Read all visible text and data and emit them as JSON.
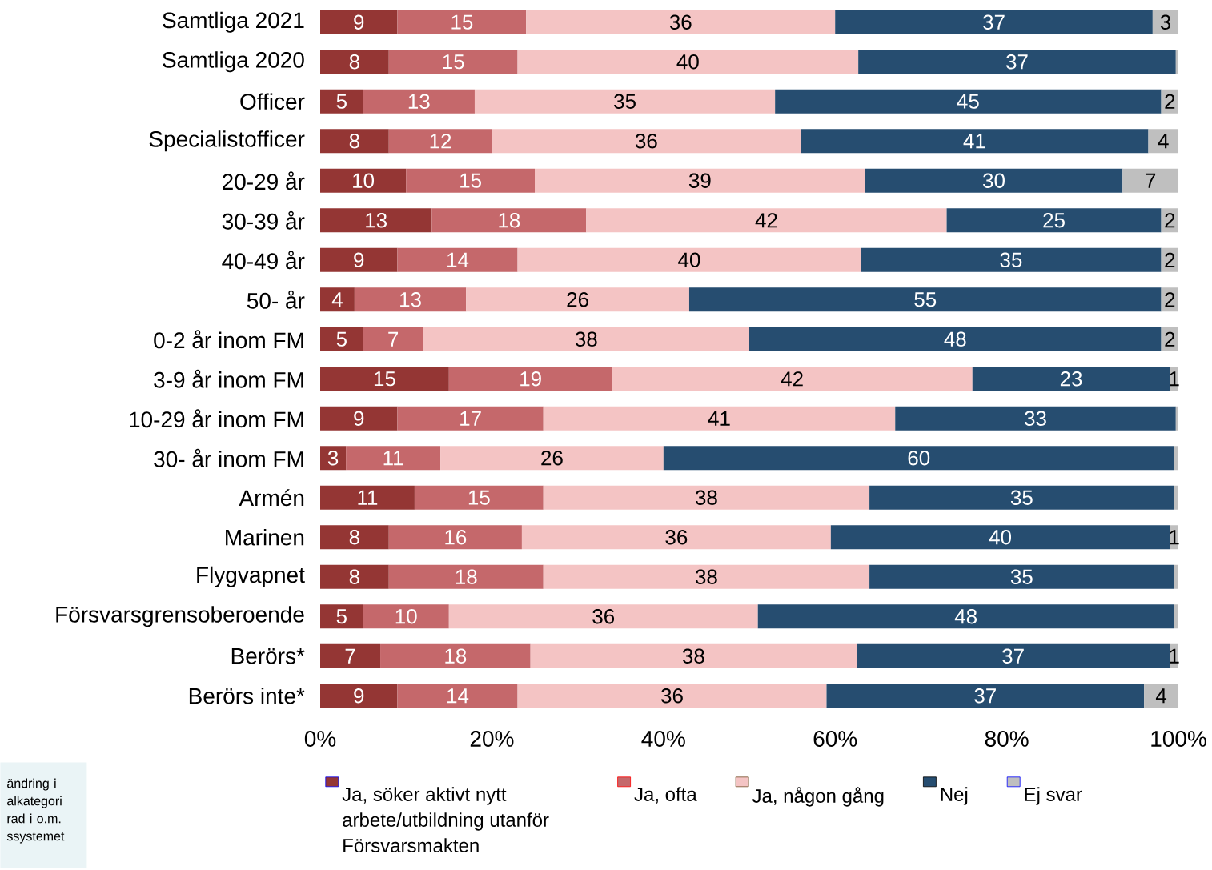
{
  "chart_data": {
    "type": "bar",
    "orientation": "horizontal",
    "stacked": true,
    "legend": "bottom",
    "grid": false,
    "categories": [
      "Samtliga 2021",
      "Samtliga 2020",
      "Officer",
      "Specialistofficer",
      "20-29 år",
      "30-39 år",
      "40-49 år",
      "50- år",
      "0-2 år inom FM",
      "3-9 år inom FM",
      "10-29 år inom FM",
      "30- år inom FM",
      "Armén",
      "Marinen",
      "Flygvapnet",
      "Försvarsgrensoberoende",
      "Berörs*",
      "Berörs inte*"
    ],
    "xlim": [
      0,
      100
    ],
    "xticks": [
      {
        "value": 0,
        "label": "0%"
      },
      {
        "value": 20,
        "label": "20%"
      },
      {
        "value": 40,
        "label": "40%"
      },
      {
        "value": 60,
        "label": "60%"
      },
      {
        "value": 80,
        "label": "80%"
      },
      {
        "value": 100,
        "label": "100%"
      }
    ],
    "series": [
      {
        "name": "Ja, söker aktivt nytt arbete/utbildning utanför Försvarsmakten",
        "color": "#943634",
        "values": [
          9,
          8,
          5,
          8,
          10,
          13,
          9,
          4,
          5,
          15,
          9,
          3,
          11,
          8,
          8,
          5,
          7,
          9
        ],
        "value_labels": [
          "9",
          "8",
          "5",
          "8",
          "10",
          "13",
          "9",
          "4",
          "5",
          "15",
          "9",
          "3",
          "11",
          "8",
          "8",
          "5",
          "7",
          "9"
        ]
      },
      {
        "name": "Ja, ofta",
        "color": "#c5686b",
        "values": [
          15,
          15,
          13,
          12,
          15,
          18,
          14,
          13,
          7,
          19,
          17,
          11,
          15,
          15.5,
          18,
          10,
          17.5,
          14
        ],
        "value_labels": [
          "15",
          "15",
          "13",
          "12",
          "15",
          "18",
          "14",
          "13",
          "7",
          "19",
          "17",
          "11",
          "15",
          "16",
          "18",
          "10",
          "18",
          "14"
        ]
      },
      {
        "name": "Ja, någon gång",
        "color": "#f4c4c4",
        "values": [
          36,
          39.7,
          35,
          36,
          38.5,
          42,
          40,
          26,
          38,
          42,
          41,
          26,
          38,
          36,
          38,
          36,
          38,
          36
        ],
        "value_labels": [
          "36",
          "40",
          "35",
          "36",
          "39",
          "42",
          "40",
          "26",
          "38",
          "42",
          "41",
          "26",
          "38",
          "36",
          "38",
          "36",
          "38",
          "36"
        ]
      },
      {
        "name": "Nej",
        "color": "#264d70",
        "values": [
          37,
          37,
          45,
          40.5,
          30,
          25,
          35,
          55,
          48,
          23,
          32.7,
          59.5,
          35.5,
          39.5,
          35.5,
          48.5,
          36.5,
          37
        ],
        "value_labels": [
          "37",
          "37",
          "45",
          "41",
          "30",
          "25",
          "35",
          "55",
          "48",
          "23",
          "33",
          "60",
          "35",
          "40",
          "35",
          "48",
          "37",
          "37"
        ]
      },
      {
        "name": "Ej svar",
        "color": "#bfbfbf",
        "values": [
          3,
          0.3,
          2,
          3.5,
          6.5,
          2,
          2,
          2,
          2,
          1,
          0.3,
          0.5,
          0.5,
          1,
          0.5,
          0.5,
          1,
          4
        ],
        "value_labels": [
          "3",
          null,
          "2",
          "4",
          "7",
          "2",
          "2",
          "2",
          "2",
          "1",
          null,
          null,
          null,
          "1",
          null,
          null,
          "1",
          "4"
        ]
      }
    ],
    "annotations": [
      "ändring i alkategori rad i o.m. ssystemet"
    ]
  }
}
